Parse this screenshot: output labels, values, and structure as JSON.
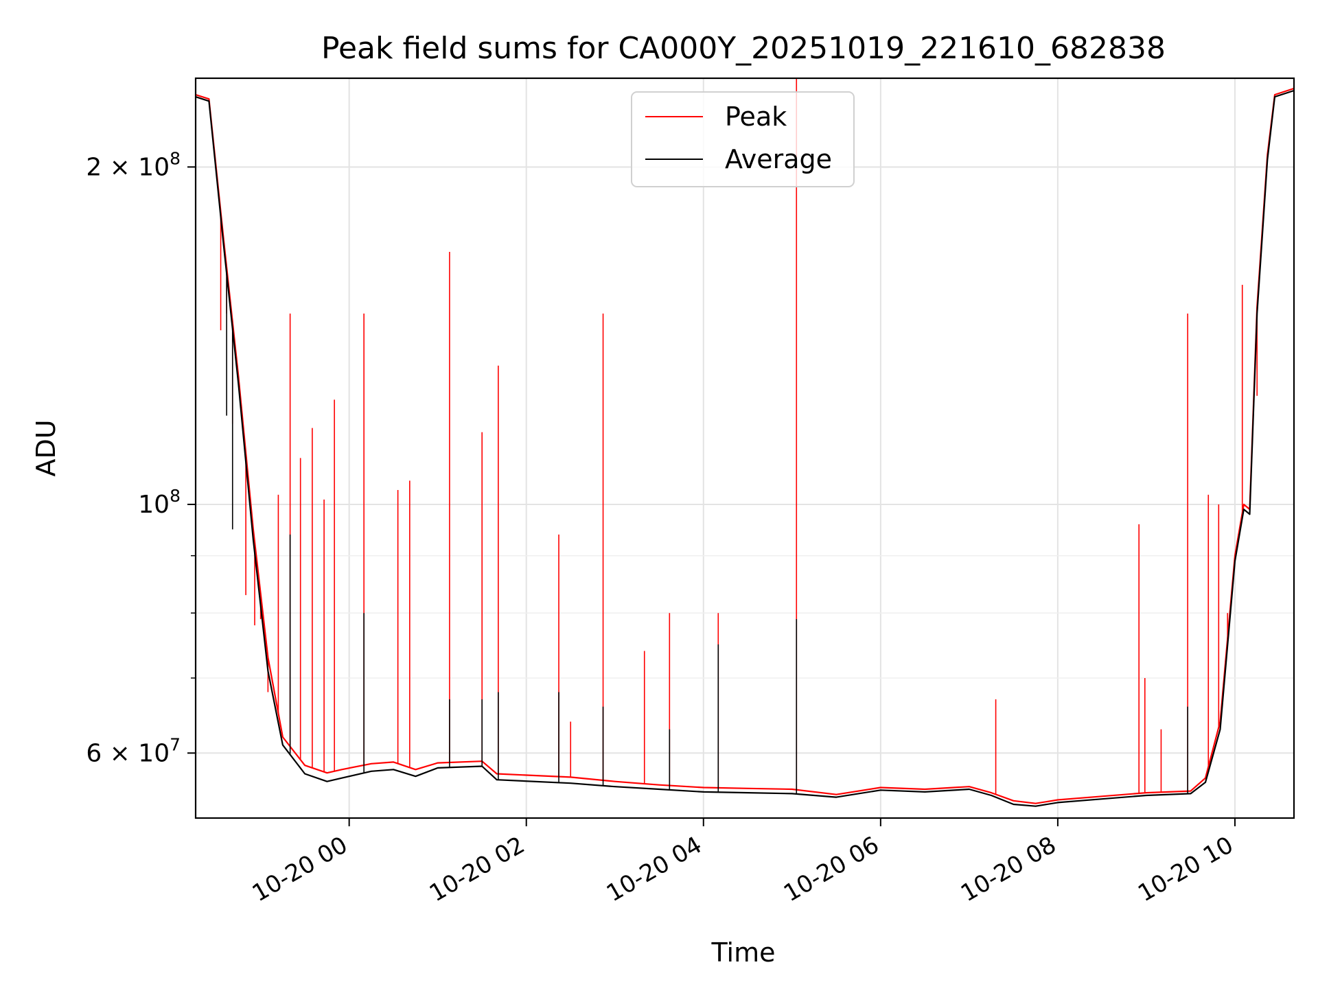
{
  "chart_data": {
    "type": "line",
    "title": "Peak field sums for CA000Y_20251019_221610_682838",
    "xlabel": "Time",
    "ylabel": "ADU",
    "y_scale": "log",
    "grid": true,
    "legend_position": "top-center",
    "xlim": [
      "2025-10-19 22:16",
      "2025-10-20 10:40"
    ],
    "ylim": [
      52500000,
      240000000
    ],
    "x_ticks": [
      "2025-10-20 00:00",
      "2025-10-20 02:00",
      "2025-10-20 04:00",
      "2025-10-20 06:00",
      "2025-10-20 08:00",
      "2025-10-20 10:00"
    ],
    "x_tick_labels": [
      "10-20 00",
      "10-20 02",
      "10-20 04",
      "10-20 06",
      "10-20 08",
      "10-20 10"
    ],
    "y_ticks": [
      60000000,
      100000000,
      200000000
    ],
    "y_tick_labels": [
      {
        "base": "6",
        "times": "×",
        "ten": "10",
        "exp": "7"
      },
      {
        "base": "",
        "times": "",
        "ten": "10",
        "exp": "8"
      },
      {
        "base": "2",
        "times": "×",
        "ten": "10",
        "exp": "8"
      }
    ],
    "series": [
      {
        "name": "Peak",
        "color": "#ff0000",
        "baseline": [
          [
            "2025-10-19 22:16",
            232000000
          ],
          [
            "2025-10-19 22:25",
            230000000
          ],
          [
            "2025-10-19 22:35",
            172000000
          ],
          [
            "2025-10-19 22:45",
            130000000
          ],
          [
            "2025-10-19 22:55",
            95000000
          ],
          [
            "2025-10-19 23:05",
            73000000
          ],
          [
            "2025-10-19 23:15",
            62000000
          ],
          [
            "2025-10-19 23:30",
            58500000
          ],
          [
            "2025-10-19 23:45",
            57600000
          ],
          [
            "2025-10-19 23:55",
            58000000
          ],
          [
            "2025-10-20 00:15",
            58700000
          ],
          [
            "2025-10-20 00:30",
            58900000
          ],
          [
            "2025-10-20 00:45",
            58000000
          ],
          [
            "2025-10-20 01:00",
            58800000
          ],
          [
            "2025-10-20 01:30",
            59000000
          ],
          [
            "2025-10-20 01:40",
            57500000
          ],
          [
            "2025-10-20 02:30",
            57100000
          ],
          [
            "2025-10-20 03:00",
            56600000
          ],
          [
            "2025-10-20 03:30",
            56200000
          ],
          [
            "2025-10-20 04:00",
            55900000
          ],
          [
            "2025-10-20 04:30",
            55800000
          ],
          [
            "2025-10-20 05:00",
            55700000
          ],
          [
            "2025-10-20 05:30",
            55100000
          ],
          [
            "2025-10-20 06:00",
            55900000
          ],
          [
            "2025-10-20 06:30",
            55700000
          ],
          [
            "2025-10-20 07:00",
            56000000
          ],
          [
            "2025-10-20 07:15",
            55300000
          ],
          [
            "2025-10-20 07:30",
            54400000
          ],
          [
            "2025-10-20 07:45",
            54100000
          ],
          [
            "2025-10-20 08:00",
            54500000
          ],
          [
            "2025-10-20 08:30",
            54900000
          ],
          [
            "2025-10-20 09:00",
            55300000
          ],
          [
            "2025-10-20 09:30",
            55500000
          ],
          [
            "2025-10-20 09:40",
            57000000
          ],
          [
            "2025-10-20 09:50",
            64000000
          ],
          [
            "2025-10-20 10:00",
            90000000
          ],
          [
            "2025-10-20 10:06",
            100000000
          ],
          [
            "2025-10-20 10:10",
            99000000
          ],
          [
            "2025-10-20 10:15",
            150000000
          ],
          [
            "2025-10-20 10:22",
            205000000
          ],
          [
            "2025-10-20 10:27",
            232000000
          ],
          [
            "2025-10-20 10:40",
            235000000
          ]
        ],
        "spikes": [
          [
            "2025-10-19 22:33",
            143000000
          ],
          [
            "2025-10-19 22:37",
            148000000
          ],
          [
            "2025-10-19 22:41",
            118000000
          ],
          [
            "2025-10-19 22:50",
            83000000
          ],
          [
            "2025-10-19 22:56",
            78000000
          ],
          [
            "2025-10-19 23:00",
            79000000
          ],
          [
            "2025-10-19 23:05",
            68000000
          ],
          [
            "2025-10-19 23:12",
            102000000
          ],
          [
            "2025-10-19 23:20",
            148000000
          ],
          [
            "2025-10-19 23:27",
            110000000
          ],
          [
            "2025-10-19 23:35",
            117000000
          ],
          [
            "2025-10-19 23:43",
            101000000
          ],
          [
            "2025-10-19 23:50",
            124000000
          ],
          [
            "2025-10-20 00:10",
            148000000
          ],
          [
            "2025-10-20 00:33",
            103000000
          ],
          [
            "2025-10-20 00:41",
            105000000
          ],
          [
            "2025-10-20 01:08",
            168000000
          ],
          [
            "2025-10-20 01:30",
            116000000
          ],
          [
            "2025-10-20 01:41",
            133000000
          ],
          [
            "2025-10-20 02:22",
            94000000
          ],
          [
            "2025-10-20 02:30",
            64000000
          ],
          [
            "2025-10-20 02:52",
            148000000
          ],
          [
            "2025-10-20 03:20",
            74000000
          ],
          [
            "2025-10-20 03:37",
            80000000
          ],
          [
            "2025-10-20 04:10",
            80000000
          ],
          [
            "2025-10-20 05:03",
            240000000
          ],
          [
            "2025-10-20 07:18",
            67000000
          ],
          [
            "2025-10-20 08:55",
            96000000
          ],
          [
            "2025-10-20 08:59",
            70000000
          ],
          [
            "2025-10-20 09:10",
            63000000
          ],
          [
            "2025-10-20 09:28",
            148000000
          ],
          [
            "2025-10-20 09:42",
            102000000
          ],
          [
            "2025-10-20 09:49",
            100000000
          ],
          [
            "2025-10-20 09:55",
            80000000
          ],
          [
            "2025-10-20 10:05",
            157000000
          ],
          [
            "2025-10-20 10:15",
            125000000
          ]
        ]
      },
      {
        "name": "Average",
        "color": "#000000",
        "baseline": [
          [
            "2025-10-19 22:16",
            231000000
          ],
          [
            "2025-10-19 22:25",
            229000000
          ],
          [
            "2025-10-19 22:35",
            170000000
          ],
          [
            "2025-10-19 22:45",
            128000000
          ],
          [
            "2025-10-19 22:55",
            93000000
          ],
          [
            "2025-10-19 23:05",
            71000000
          ],
          [
            "2025-10-19 23:15",
            61000000
          ],
          [
            "2025-10-19 23:30",
            57500000
          ],
          [
            "2025-10-19 23:45",
            56600000
          ],
          [
            "2025-10-19 23:55",
            57000000
          ],
          [
            "2025-10-20 00:15",
            57800000
          ],
          [
            "2025-10-20 00:30",
            58000000
          ],
          [
            "2025-10-20 00:45",
            57200000
          ],
          [
            "2025-10-20 01:00",
            58200000
          ],
          [
            "2025-10-20 01:30",
            58400000
          ],
          [
            "2025-10-20 01:40",
            56800000
          ],
          [
            "2025-10-20 02:30",
            56400000
          ],
          [
            "2025-10-20 03:00",
            56000000
          ],
          [
            "2025-10-20 03:30",
            55700000
          ],
          [
            "2025-10-20 04:00",
            55400000
          ],
          [
            "2025-10-20 04:30",
            55300000
          ],
          [
            "2025-10-20 05:00",
            55200000
          ],
          [
            "2025-10-20 05:30",
            54800000
          ],
          [
            "2025-10-20 06:00",
            55600000
          ],
          [
            "2025-10-20 06:30",
            55400000
          ],
          [
            "2025-10-20 07:00",
            55700000
          ],
          [
            "2025-10-20 07:15",
            55000000
          ],
          [
            "2025-10-20 07:30",
            54000000
          ],
          [
            "2025-10-20 07:45",
            53800000
          ],
          [
            "2025-10-20 08:00",
            54200000
          ],
          [
            "2025-10-20 08:30",
            54600000
          ],
          [
            "2025-10-20 09:00",
            55000000
          ],
          [
            "2025-10-20 09:30",
            55200000
          ],
          [
            "2025-10-20 09:40",
            56500000
          ],
          [
            "2025-10-20 09:50",
            63000000
          ],
          [
            "2025-10-20 10:00",
            89000000
          ],
          [
            "2025-10-20 10:06",
            99000000
          ],
          [
            "2025-10-20 10:10",
            98000000
          ],
          [
            "2025-10-20 10:15",
            148000000
          ],
          [
            "2025-10-20 10:22",
            203000000
          ],
          [
            "2025-10-20 10:27",
            231000000
          ],
          [
            "2025-10-20 10:40",
            234000000
          ]
        ],
        "spikes": [
          [
            "2025-10-19 22:37",
            120000000
          ],
          [
            "2025-10-19 22:41",
            95000000
          ],
          [
            "2025-10-19 23:20",
            94000000
          ],
          [
            "2025-10-20 00:10",
            80000000
          ],
          [
            "2025-10-20 01:08",
            67000000
          ],
          [
            "2025-10-20 01:30",
            67000000
          ],
          [
            "2025-10-20 01:41",
            68000000
          ],
          [
            "2025-10-20 02:22",
            68000000
          ],
          [
            "2025-10-20 02:52",
            66000000
          ],
          [
            "2025-10-20 03:37",
            63000000
          ],
          [
            "2025-10-20 04:10",
            75000000
          ],
          [
            "2025-10-20 05:03",
            79000000
          ],
          [
            "2025-10-20 09:28",
            66000000
          ]
        ]
      }
    ]
  }
}
